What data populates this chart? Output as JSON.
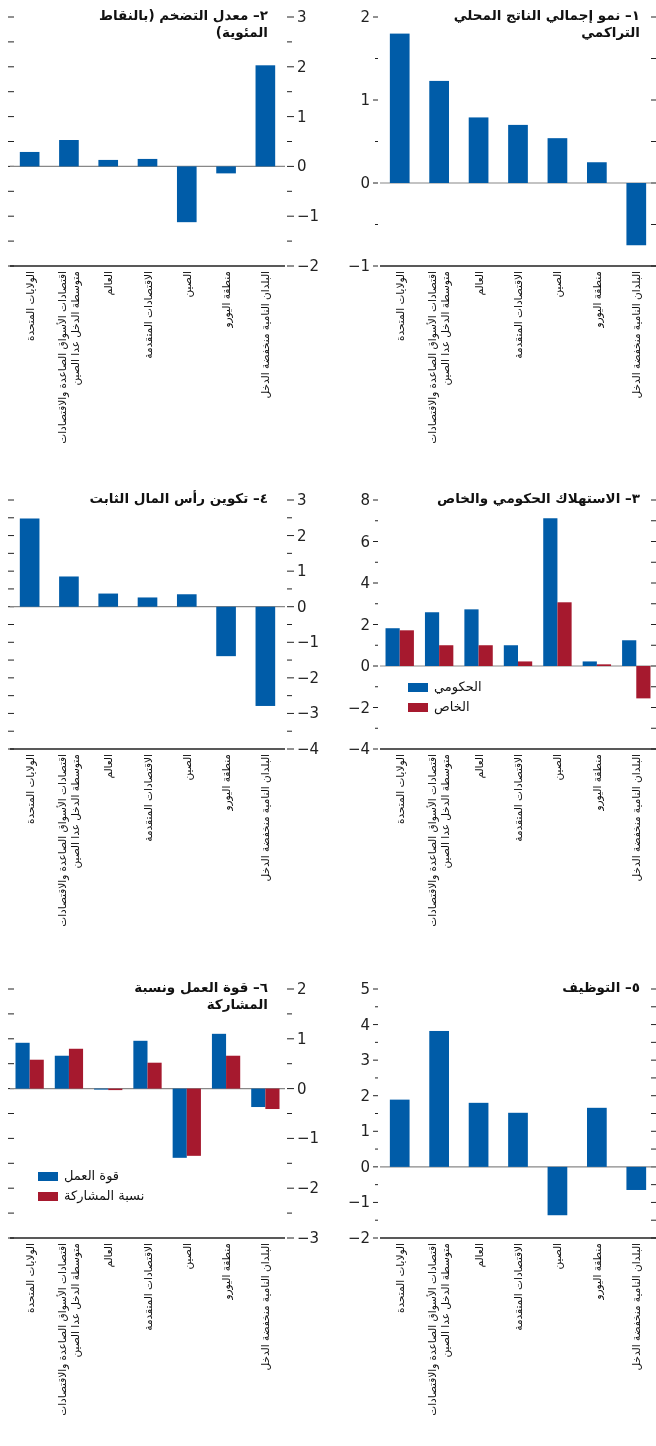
{
  "chart_data": [
    {
      "type": "bar",
      "title": "١– نمو إجمالي الناتج المحلي التراكمي",
      "categories": [
        "الولايات المتحدة",
        "اقتصادات الأسواق الصاعدة والاقتصادات متوسطة الدخل عدا الصين",
        "العالم",
        "الاقتصادات المتقدمة",
        "الصين",
        "منطقة اليورو",
        "البلدان النامية منخفضة الدخل"
      ],
      "values": [
        1.8,
        1.23,
        0.79,
        0.7,
        0.54,
        0.25,
        -0.75
      ],
      "color": "#005ca8",
      "ylim": [
        -1,
        2
      ],
      "yticks": [
        {
          "value": -1,
          "label": "−1"
        },
        {
          "value": -0.5,
          "label": null
        },
        0,
        {
          "value": 0.5,
          "label": null
        },
        1,
        {
          "value": 1.5,
          "label": null
        },
        2
      ]
    },
    {
      "type": "bar",
      "title": "٢– معدل التضخم (بالنقاط المئوية)",
      "categories": [
        "الولايات المتحدة",
        "اقتصادات الأسواق الصاعدة والاقتصادات متوسطة الدخل عدا الصين",
        "العالم",
        "الاقتصادات المتقدمة",
        "الصين",
        "منطقة اليورو",
        "البلدان النامية منخفضة الدخل"
      ],
      "values": [
        0.29,
        0.53,
        0.13,
        0.15,
        -1.12,
        -0.14,
        2.03
      ],
      "color": "#005ca8",
      "ylim": [
        -2,
        3
      ],
      "yticks": [
        {
          "value": -2,
          "label": "−2"
        },
        {
          "value": -1.5,
          "label": null
        },
        {
          "value": -1,
          "label": "−1"
        },
        {
          "value": -0.5,
          "label": null
        },
        0,
        {
          "value": 0.5,
          "label": null
        },
        1,
        {
          "value": 1.5,
          "label": null
        },
        2,
        {
          "value": 2.5,
          "label": null
        },
        3
      ]
    },
    {
      "type": "bar",
      "title": "٣– الاستهلاك الحكومي والخاص",
      "categories": [
        "الولايات المتحدة",
        "اقتصادات الأسواق الصاعدة والاقتصادات متوسطة الدخل عدا الصين",
        "العالم",
        "الاقتصادات المتقدمة",
        "الصين",
        "منطقة اليورو",
        "البلدان النامية منخفضة الدخل"
      ],
      "series": [
        {
          "name": "الحكومي",
          "color": "#005ca8",
          "values": [
            1.82,
            2.59,
            2.73,
            1.0,
            7.12,
            0.22,
            1.24
          ]
        },
        {
          "name": "الخاص",
          "color": "#a6192e",
          "values": [
            1.72,
            1.0,
            1.0,
            0.22,
            3.07,
            0.08,
            -1.56
          ]
        }
      ],
      "legend": "bottom left",
      "ylim": [
        -4,
        8
      ],
      "yticks": [
        {
          "value": -4,
          "label": "−4"
        },
        {
          "value": -3,
          "label": null
        },
        {
          "value": -2,
          "label": "−2"
        },
        {
          "value": -1,
          "label": null
        },
        0,
        {
          "value": 1,
          "label": null
        },
        2,
        {
          "value": 3,
          "label": null
        },
        4,
        {
          "value": 5,
          "label": null
        },
        6,
        {
          "value": 7,
          "label": null
        },
        8
      ]
    },
    {
      "type": "bar",
      "title": "٤– تكوين رأس المال الثابت",
      "categories": [
        "الولايات المتحدة",
        "اقتصادات الأسواق الصاعدة والاقتصادات متوسطة الدخل عدا الصين",
        "العالم",
        "الاقتصادات المتقدمة",
        "الصين",
        "منطقة اليورو",
        "البلدان النامية منخفضة الدخل"
      ],
      "values": [
        2.48,
        0.85,
        0.37,
        0.26,
        0.35,
        -1.39,
        -2.79
      ],
      "color": "#005ca8",
      "ylim": [
        -4,
        3
      ],
      "yticks": [
        {
          "value": -4,
          "label": "−4"
        },
        {
          "value": -3.5,
          "label": null
        },
        {
          "value": -3,
          "label": "−3"
        },
        {
          "value": -2.5,
          "label": null
        },
        {
          "value": -2,
          "label": "−2"
        },
        {
          "value": -1.5,
          "label": null
        },
        {
          "value": -1,
          "label": "−1"
        },
        {
          "value": -0.5,
          "label": null
        },
        0,
        {
          "value": 0.5,
          "label": null
        },
        1,
        {
          "value": 1.5,
          "label": null
        },
        2,
        {
          "value": 2.5,
          "label": null
        },
        3
      ]
    },
    {
      "type": "bar",
      "title": "٥– التوظيف",
      "categories": [
        "الولايات المتحدة",
        "اقتصادات الأسواق الصاعدة والاقتصادات متوسطة الدخل عدا الصين",
        "العالم",
        "الاقتصادات المتقدمة",
        "الصين",
        "منطقة اليورو",
        "البلدان النامية منخفضة الدخل"
      ],
      "values": [
        1.89,
        3.82,
        1.8,
        1.52,
        -1.36,
        1.66,
        -0.65
      ],
      "color": "#005ca8",
      "ylim": [
        -2,
        5
      ],
      "yticks": [
        {
          "value": -2,
          "label": "−2"
        },
        {
          "value": -1.5,
          "label": null
        },
        {
          "value": -1,
          "label": "−1"
        },
        {
          "value": -0.5,
          "label": null
        },
        0,
        {
          "value": 0.5,
          "label": null
        },
        1,
        {
          "value": 1.5,
          "label": null
        },
        2,
        {
          "value": 2.5,
          "label": null
        },
        3,
        {
          "value": 3.5,
          "label": null
        },
        4,
        {
          "value": 4.5,
          "label": null
        },
        5
      ]
    },
    {
      "type": "bar",
      "title": "٦– قوة العمل ونسبة المشاركة",
      "categories": [
        "الولايات المتحدة",
        "اقتصادات الأسواق الصاعدة والاقتصادات متوسطة الدخل عدا الصين",
        "العالم",
        "الاقتصادات المتقدمة",
        "الصين",
        "منطقة اليورو",
        "البلدان النامية منخفضة الدخل"
      ],
      "series": [
        {
          "name": "قوة العمل",
          "color": "#005ca8",
          "values": [
            0.92,
            0.66,
            -0.02,
            0.96,
            -1.39,
            1.1,
            -0.37
          ]
        },
        {
          "name": "نسبة المشاركة",
          "color": "#a6192e",
          "values": [
            0.58,
            0.8,
            -0.03,
            0.52,
            -1.35,
            0.66,
            -0.41
          ]
        }
      ],
      "legend": "bottom left",
      "ylim": [
        -3,
        2
      ],
      "yticks": [
        {
          "value": -3,
          "label": "−3"
        },
        {
          "value": -2.5,
          "label": null
        },
        {
          "value": -2,
          "label": "−2"
        },
        {
          "value": -1.5,
          "label": null
        },
        {
          "value": -1,
          "label": "−1"
        },
        {
          "value": -0.5,
          "label": null
        },
        0,
        {
          "value": 0.5,
          "label": null
        },
        1,
        {
          "value": 1.5,
          "label": null
        },
        2
      ]
    }
  ]
}
